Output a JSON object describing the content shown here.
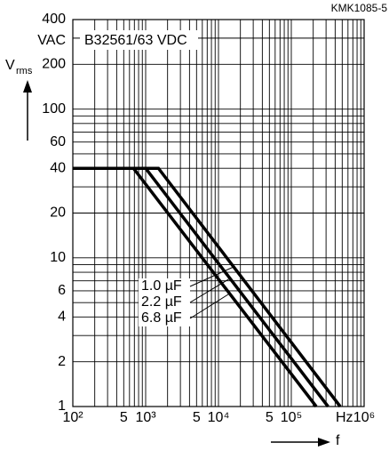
{
  "chart_data": {
    "type": "line",
    "title": "B32561/63 VDC",
    "code": "KMK1085-5",
    "y_label": "V",
    "y_label_sub": "rms",
    "y_unit": "VAC",
    "x_label": "f",
    "x_unit": "Hz",
    "log_x": true,
    "log_y": true,
    "grid": true,
    "xlim": [
      100,
      1000000
    ],
    "ylim": [
      1,
      400
    ],
    "xticks": [
      {
        "value": 100,
        "label": "10²"
      },
      {
        "value": 500,
        "label": "5"
      },
      {
        "value": 1000,
        "label": "10³"
      },
      {
        "value": 5000,
        "label": "5"
      },
      {
        "value": 10000,
        "label": "10⁴"
      },
      {
        "value": 50000,
        "label": "5"
      },
      {
        "value": 100000,
        "label": "10⁵"
      },
      {
        "value": 1000000,
        "label": "10⁶"
      }
    ],
    "yticks": [
      1,
      2,
      4,
      6,
      10,
      20,
      40,
      60,
      100,
      200,
      400
    ],
    "xgrid": [
      100,
      200,
      300,
      400,
      500,
      600,
      700,
      800,
      900,
      1000,
      2000,
      3000,
      4000,
      5000,
      6000,
      7000,
      8000,
      9000,
      10000,
      20000,
      30000,
      40000,
      50000,
      60000,
      70000,
      80000,
      90000,
      100000,
      200000,
      300000,
      400000,
      500000,
      600000,
      700000,
      800000,
      900000,
      1000000
    ],
    "ygrid": [
      1,
      2,
      3,
      4,
      5,
      6,
      7,
      8,
      9,
      10,
      20,
      30,
      40,
      50,
      60,
      70,
      80,
      90,
      100,
      200,
      300,
      400
    ],
    "series": [
      {
        "name": "1.0 µF",
        "color": "#000000",
        "x": [
          100,
          1500,
          470000
        ],
        "values": [
          40,
          40,
          1
        ]
      },
      {
        "name": "2.2 µF",
        "color": "#000000",
        "x": [
          100,
          1000,
          320000
        ],
        "values": [
          40,
          40,
          1
        ]
      },
      {
        "name": "6.8 µF",
        "color": "#000000",
        "x": [
          100,
          680,
          220000
        ],
        "values": [
          40,
          40,
          1
        ]
      }
    ]
  }
}
